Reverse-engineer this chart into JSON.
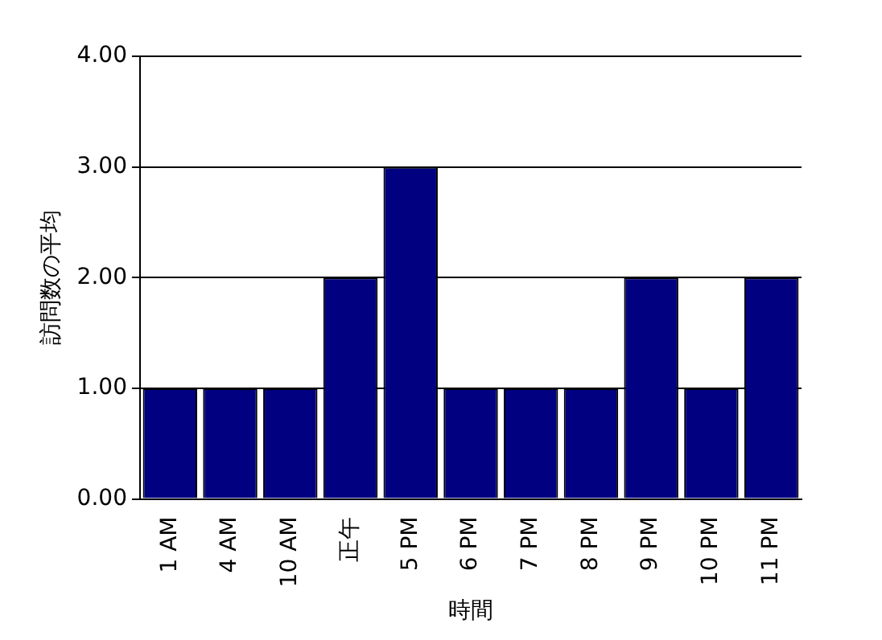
{
  "chart_data": {
    "type": "bar",
    "xlabel": "時間",
    "ylabel": "訪問数の平均",
    "categories": [
      "1 AM",
      "4 AM",
      "10 AM",
      "正午",
      "5 PM",
      "6 PM",
      "7 PM",
      "8 PM",
      "9 PM",
      "10 PM",
      "11 PM"
    ],
    "values": [
      1,
      1,
      1,
      2,
      3,
      1,
      1,
      1,
      2,
      1,
      2
    ],
    "color": "#000080",
    "ylim": [
      0,
      4
    ],
    "yticks": [
      {
        "value": 0,
        "label": "0.00"
      },
      {
        "value": 1,
        "label": "1.00"
      },
      {
        "value": 2,
        "label": "2.00"
      },
      {
        "value": 3,
        "label": "3.00"
      },
      {
        "value": 4,
        "label": "4.00"
      }
    ],
    "grid": "y",
    "legend": false
  }
}
